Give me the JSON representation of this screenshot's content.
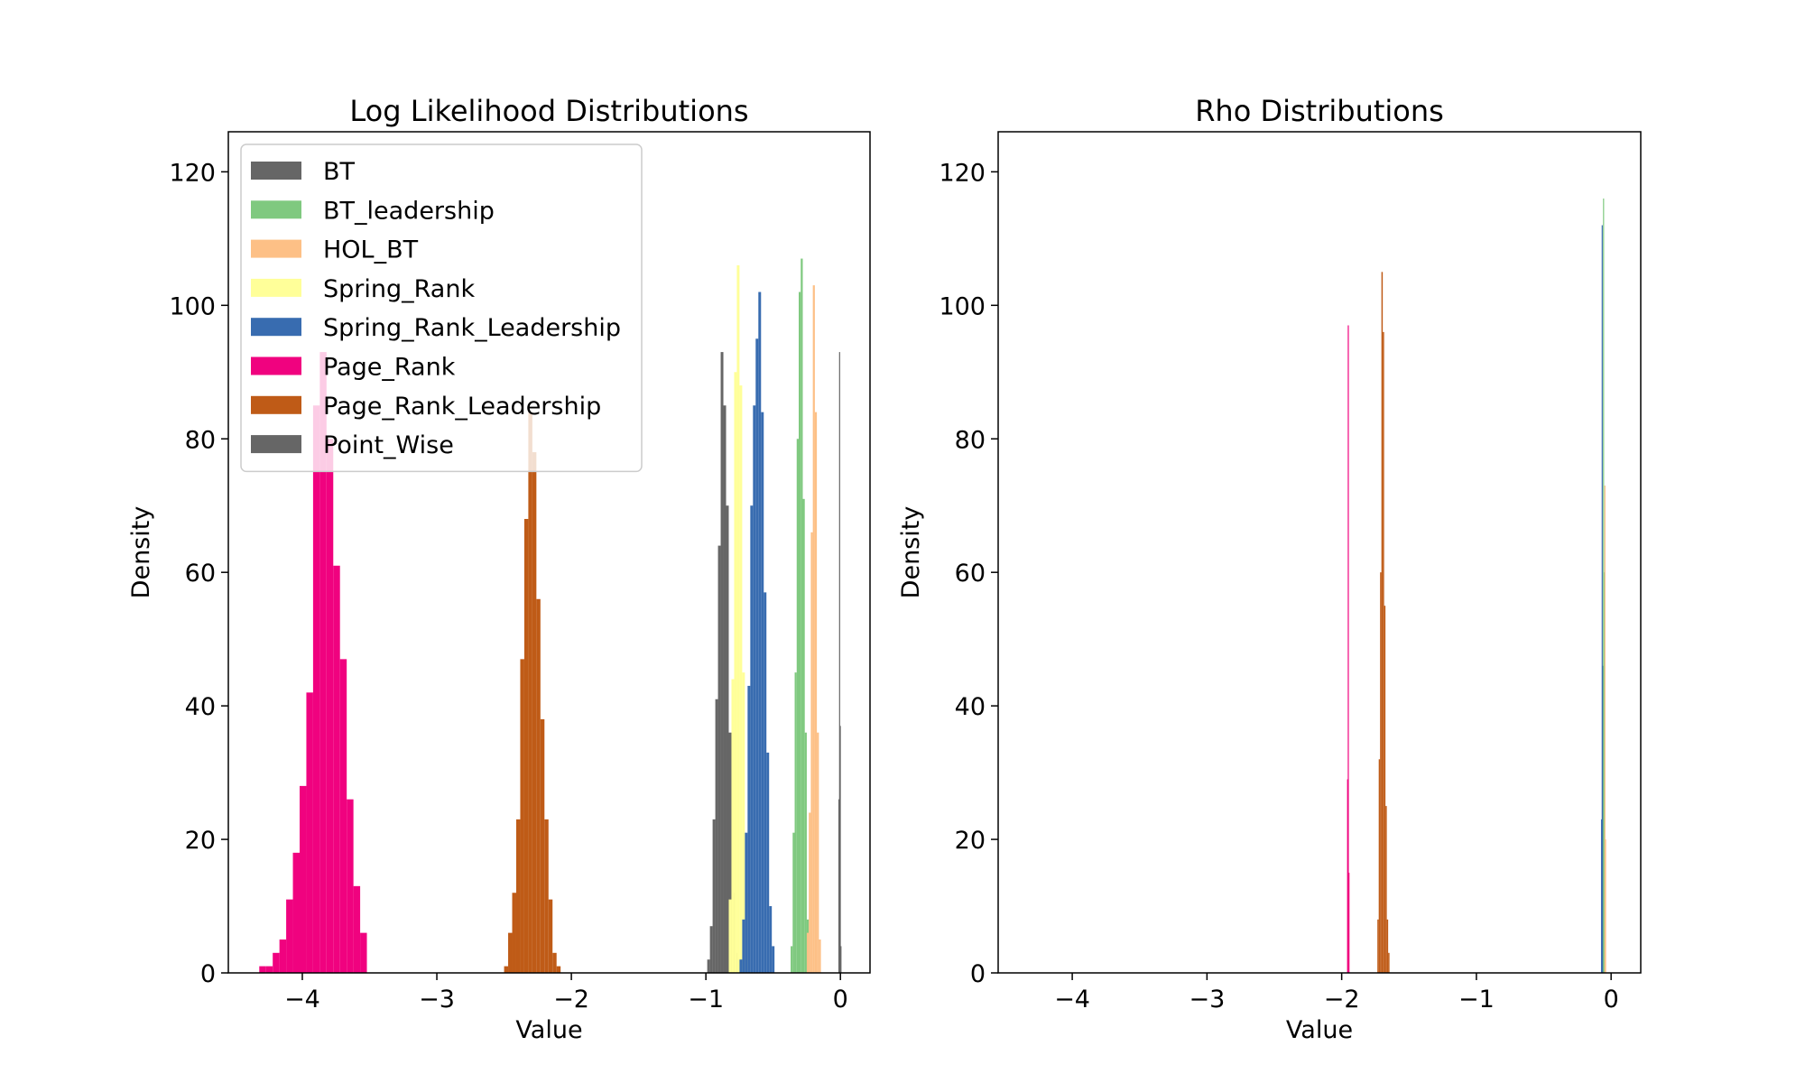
{
  "chart_data": [
    {
      "type": "histogram",
      "title": "Log Likelihood Distributions",
      "xlabel": "Value",
      "ylabel": "Density",
      "xlim": [
        -4.55,
        0.22
      ],
      "ylim": [
        0,
        126
      ],
      "xticks": [
        {
          "value": -4,
          "label": "−4"
        },
        {
          "value": -3,
          "label": "−3"
        },
        {
          "value": -2,
          "label": "−2"
        },
        {
          "value": -1,
          "label": "−1"
        },
        {
          "value": 0,
          "label": "0"
        }
      ],
      "yticks": [
        {
          "value": 0,
          "label": "0"
        },
        {
          "value": 20,
          "label": "20"
        },
        {
          "value": 40,
          "label": "40"
        },
        {
          "value": 60,
          "label": "60"
        },
        {
          "value": 80,
          "label": "80"
        },
        {
          "value": 100,
          "label": "100"
        },
        {
          "value": 120,
          "label": "120"
        }
      ],
      "legend": {
        "position": "top-left",
        "entries": [
          "BT",
          "BT_leadership",
          "HOL_BT",
          "Spring_Rank",
          "Spring_Rank_Leadership",
          "Page_Rank",
          "Page_Rank_Leadership",
          "Point_Wise"
        ]
      },
      "series": [
        {
          "name": "Page_Rank",
          "color": "#f0027f",
          "bins": [
            [
              -4.32,
              -4.27,
              1
            ],
            [
              -4.27,
              -4.22,
              1
            ],
            [
              -4.22,
              -4.17,
              3
            ],
            [
              -4.17,
              -4.12,
              5
            ],
            [
              -4.12,
              -4.07,
              11
            ],
            [
              -4.07,
              -4.02,
              18
            ],
            [
              -4.02,
              -3.97,
              28
            ],
            [
              -3.97,
              -3.92,
              42
            ],
            [
              -3.92,
              -3.87,
              85
            ],
            [
              -3.87,
              -3.82,
              93
            ],
            [
              -3.82,
              -3.77,
              80
            ],
            [
              -3.77,
              -3.72,
              61
            ],
            [
              -3.72,
              -3.67,
              47
            ],
            [
              -3.67,
              -3.62,
              26
            ],
            [
              -3.62,
              -3.57,
              13
            ],
            [
              -3.57,
              -3.52,
              6
            ]
          ]
        },
        {
          "name": "Page_Rank_Leadership",
          "color": "#bf5b17",
          "bins": [
            [
              -2.5,
              -2.47,
              1
            ],
            [
              -2.47,
              -2.44,
              6
            ],
            [
              -2.44,
              -2.41,
              12
            ],
            [
              -2.41,
              -2.38,
              23
            ],
            [
              -2.38,
              -2.35,
              47
            ],
            [
              -2.35,
              -2.32,
              68
            ],
            [
              -2.32,
              -2.29,
              84
            ],
            [
              -2.29,
              -2.26,
              78
            ],
            [
              -2.26,
              -2.23,
              56
            ],
            [
              -2.23,
              -2.2,
              38
            ],
            [
              -2.2,
              -2.17,
              23
            ],
            [
              -2.17,
              -2.14,
              11
            ],
            [
              -2.14,
              -2.11,
              3
            ],
            [
              -2.11,
              -2.08,
              1
            ]
          ]
        },
        {
          "name": "BT",
          "color": "#666666",
          "bins": [
            [
              -0.99,
              -0.97,
              2
            ],
            [
              -0.97,
              -0.95,
              7
            ],
            [
              -0.95,
              -0.93,
              23
            ],
            [
              -0.93,
              -0.91,
              41
            ],
            [
              -0.91,
              -0.89,
              64
            ],
            [
              -0.89,
              -0.87,
              93
            ],
            [
              -0.87,
              -0.85,
              85
            ],
            [
              -0.85,
              -0.83,
              70
            ],
            [
              -0.83,
              -0.81,
              36
            ],
            [
              -0.81,
              -0.79,
              12
            ],
            [
              -0.79,
              -0.77,
              3
            ]
          ]
        },
        {
          "name": "Spring_Rank",
          "color": "#ffff99",
          "bins": [
            [
              -0.83,
              -0.81,
              11
            ],
            [
              -0.81,
              -0.79,
              44
            ],
            [
              -0.79,
              -0.77,
              90
            ],
            [
              -0.77,
              -0.75,
              106
            ],
            [
              -0.75,
              -0.73,
              88
            ],
            [
              -0.73,
              -0.71,
              45
            ],
            [
              -0.71,
              -0.69,
              12
            ]
          ]
        },
        {
          "name": "Spring_Rank_Leadership",
          "color": "#386cb0",
          "bins": [
            [
              -0.75,
              -0.73,
              2
            ],
            [
              -0.73,
              -0.71,
              8
            ],
            [
              -0.71,
              -0.69,
              21
            ],
            [
              -0.69,
              -0.67,
              43
            ],
            [
              -0.67,
              -0.65,
              70
            ],
            [
              -0.65,
              -0.63,
              85
            ],
            [
              -0.63,
              -0.61,
              95
            ],
            [
              -0.61,
              -0.59,
              102
            ],
            [
              -0.59,
              -0.57,
              84
            ],
            [
              -0.57,
              -0.55,
              57
            ],
            [
              -0.55,
              -0.53,
              33
            ],
            [
              -0.53,
              -0.51,
              10
            ],
            [
              -0.51,
              -0.49,
              4
            ]
          ]
        },
        {
          "name": "BT_leadership",
          "color": "#7fc97f",
          "bins": [
            [
              -0.37,
              -0.355,
              4
            ],
            [
              -0.355,
              -0.34,
              21
            ],
            [
              -0.34,
              -0.325,
              45
            ],
            [
              -0.325,
              -0.31,
              80
            ],
            [
              -0.31,
              -0.295,
              102
            ],
            [
              -0.295,
              -0.28,
              107
            ],
            [
              -0.28,
              -0.265,
              71
            ],
            [
              -0.265,
              -0.25,
              36
            ],
            [
              -0.25,
              -0.235,
              8
            ]
          ]
        },
        {
          "name": "HOL_BT",
          "color": "#fdc086",
          "bins": [
            [
              -0.25,
              -0.235,
              6
            ],
            [
              -0.235,
              -0.22,
              24
            ],
            [
              -0.22,
              -0.205,
              66
            ],
            [
              -0.205,
              -0.19,
              103
            ],
            [
              -0.19,
              -0.175,
              84
            ],
            [
              -0.175,
              -0.16,
              36
            ],
            [
              -0.16,
              -0.145,
              5
            ]
          ]
        },
        {
          "name": "Point_Wise",
          "color": "#666666",
          "bins": [
            [
              -0.015,
              -0.01,
              26
            ],
            [
              -0.01,
              -0.005,
              93
            ],
            [
              -0.005,
              0,
              37
            ],
            [
              0,
              0.005,
              4
            ]
          ]
        }
      ]
    },
    {
      "type": "histogram",
      "title": "Rho Distributions",
      "xlabel": "Value",
      "ylabel": "Density",
      "xlim": [
        -4.55,
        0.22
      ],
      "ylim": [
        0,
        126
      ],
      "xticks": [
        {
          "value": -4,
          "label": "−4"
        },
        {
          "value": -3,
          "label": "−3"
        },
        {
          "value": -2,
          "label": "−2"
        },
        {
          "value": -1,
          "label": "−1"
        },
        {
          "value": 0,
          "label": "0"
        }
      ],
      "yticks": [
        {
          "value": 0,
          "label": "0"
        },
        {
          "value": 20,
          "label": "20"
        },
        {
          "value": 40,
          "label": "40"
        },
        {
          "value": 60,
          "label": "60"
        },
        {
          "value": 80,
          "label": "80"
        },
        {
          "value": 100,
          "label": "100"
        },
        {
          "value": 120,
          "label": "120"
        }
      ],
      "series": [
        {
          "name": "Page_Rank",
          "color": "#f0027f",
          "bins": [
            [
              -1.96,
              -1.955,
              29
            ],
            [
              -1.955,
              -1.95,
              97
            ],
            [
              -1.95,
              -1.945,
              15
            ]
          ]
        },
        {
          "name": "Page_Rank_Leadership",
          "color": "#bf5b17",
          "bins": [
            [
              -1.735,
              -1.725,
              8
            ],
            [
              -1.725,
              -1.715,
              32
            ],
            [
              -1.715,
              -1.705,
              60
            ],
            [
              -1.705,
              -1.695,
              105
            ],
            [
              -1.695,
              -1.685,
              96
            ],
            [
              -1.685,
              -1.675,
              55
            ],
            [
              -1.675,
              -1.665,
              25
            ],
            [
              -1.665,
              -1.655,
              8
            ],
            [
              -1.655,
              -1.645,
              3
            ]
          ]
        },
        {
          "name": "Spring_Rank_Leadership",
          "color": "#386cb0",
          "bins": [
            [
              -0.075,
              -0.07,
              23
            ],
            [
              -0.07,
              -0.065,
              112
            ],
            [
              -0.065,
              -0.06,
              46
            ]
          ]
        },
        {
          "name": "BT_leadership",
          "color": "#7fc97f",
          "bins": [
            [
              -0.06,
              -0.055,
              116
            ],
            [
              -0.055,
              -0.05,
              60
            ]
          ]
        },
        {
          "name": "HOL_BT",
          "color": "#fdc086",
          "bins": [
            [
              -0.05,
              -0.045,
              73
            ],
            [
              -0.045,
              -0.04,
              20
            ]
          ]
        }
      ]
    }
  ]
}
